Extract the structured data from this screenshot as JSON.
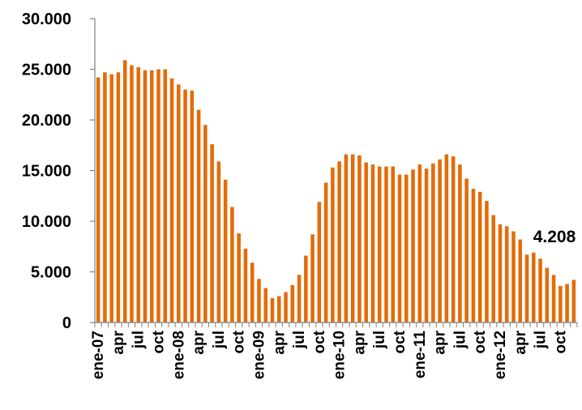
{
  "chart_data": {
    "type": "bar",
    "title": "",
    "xlabel": "",
    "ylabel": "",
    "ylim": [
      0,
      30000
    ],
    "yticks": [
      0,
      5000,
      10000,
      15000,
      20000,
      25000,
      30000
    ],
    "ytick_labels": [
      "0",
      "5.000",
      "10.000",
      "15.000",
      "20.000",
      "25.000",
      "30.000"
    ],
    "grid": false,
    "legend": "none",
    "bar_color": "#E36C09",
    "categories": [
      "ene-07",
      "feb-07",
      "mar-07",
      "apr",
      "may-07",
      "jun-07",
      "jul",
      "ago-07",
      "sep-07",
      "oct",
      "nov-07",
      "dic-07",
      "ene-08",
      "feb-08",
      "mar-08",
      "apr",
      "may-08",
      "jun-08",
      "jul",
      "ago-08",
      "sep-08",
      "oct",
      "nov-08",
      "dic-08",
      "ene-09",
      "feb-09",
      "mar-09",
      "apr",
      "may-09",
      "jun-09",
      "jul",
      "ago-09",
      "sep-09",
      "oct",
      "nov-09",
      "dic-09",
      "ene-10",
      "feb-10",
      "mar-10",
      "apr",
      "may-10",
      "jun-10",
      "jul",
      "ago-10",
      "sep-10",
      "oct",
      "nov-10",
      "dic-10",
      "ene-11",
      "feb-11",
      "mar-11",
      "apr",
      "may-11",
      "jun-11",
      "jul",
      "ago-11",
      "sep-11",
      "oct",
      "nov-11",
      "dic-11",
      "ene-12",
      "feb-12",
      "mar-12",
      "apr",
      "may-12",
      "jun-12",
      "jul",
      "ago-12",
      "sep-12",
      "oct",
      "nov-12",
      "dic-12"
    ],
    "visible_tick_labels": [
      {
        "index": 0,
        "label": "ene-07"
      },
      {
        "index": 3,
        "label": "apr"
      },
      {
        "index": 6,
        "label": "jul"
      },
      {
        "index": 9,
        "label": "oct"
      },
      {
        "index": 12,
        "label": "ene-08"
      },
      {
        "index": 15,
        "label": "apr"
      },
      {
        "index": 18,
        "label": "jul"
      },
      {
        "index": 21,
        "label": "oct"
      },
      {
        "index": 24,
        "label": "ene-09"
      },
      {
        "index": 27,
        "label": "apr"
      },
      {
        "index": 30,
        "label": "jul"
      },
      {
        "index": 33,
        "label": "oct"
      },
      {
        "index": 36,
        "label": "ene-10"
      },
      {
        "index": 39,
        "label": "apr"
      },
      {
        "index": 42,
        "label": "jul"
      },
      {
        "index": 45,
        "label": "oct"
      },
      {
        "index": 48,
        "label": "ene-11"
      },
      {
        "index": 51,
        "label": "apr"
      },
      {
        "index": 54,
        "label": "jul"
      },
      {
        "index": 57,
        "label": "oct"
      },
      {
        "index": 60,
        "label": "ene-12"
      },
      {
        "index": 63,
        "label": "apr"
      },
      {
        "index": 66,
        "label": "jul"
      },
      {
        "index": 69,
        "label": "oct"
      }
    ],
    "values": [
      24200,
      24700,
      24500,
      24700,
      25900,
      25400,
      25200,
      24900,
      24900,
      25000,
      25000,
      24100,
      23500,
      23000,
      22900,
      21000,
      19500,
      17600,
      15900,
      14100,
      11400,
      8800,
      7300,
      5900,
      4300,
      3400,
      2400,
      2600,
      3000,
      3700,
      4700,
      6600,
      8700,
      11900,
      13800,
      15300,
      15900,
      16600,
      16600,
      16500,
      15800,
      15600,
      15400,
      15400,
      15400,
      14600,
      14600,
      15100,
      15600,
      15200,
      15700,
      16100,
      16600,
      16400,
      15600,
      14200,
      13200,
      12900,
      12000,
      10600,
      9700,
      9500,
      9000,
      8200,
      6700,
      6900,
      6300,
      5400,
      4700,
      3600,
      3800,
      4208
    ],
    "data_label": {
      "index": 71,
      "text": "4.208"
    }
  }
}
